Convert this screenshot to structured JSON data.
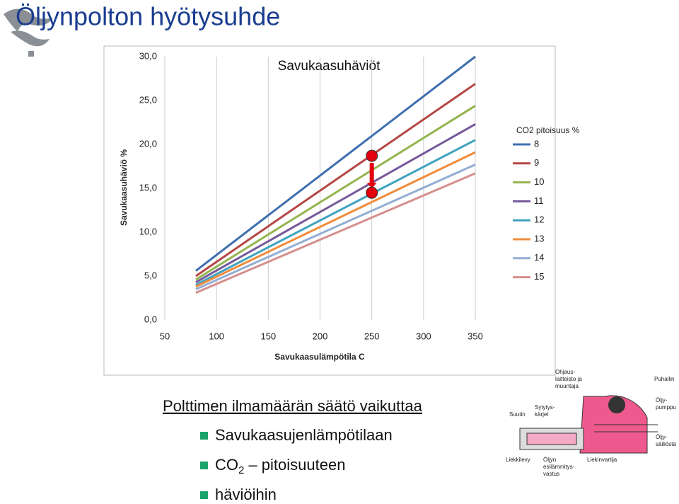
{
  "slide_title": "Öljynpolton hyötysuhde",
  "chart_data": {
    "type": "line",
    "title": "Savukaasuhäviöt",
    "x_label": "Savukaasulämpötila  C",
    "y_label": "Savukaasuhäviö  %",
    "legend_title": "CO2 pitoisuus %",
    "legend": "right",
    "x": [
      80,
      350
    ],
    "series": [
      {
        "name": "8",
        "color": "#3f6fb0",
        "values": [
          5.6,
          30.0
        ]
      },
      {
        "name": "9",
        "color": "#b54744",
        "values": [
          5.0,
          26.9
        ]
      },
      {
        "name": "10",
        "color": "#94b54f",
        "values": [
          4.6,
          24.4
        ]
      },
      {
        "name": "11",
        "color": "#75599a",
        "values": [
          4.3,
          22.3
        ]
      },
      {
        "name": "12",
        "color": "#3fa3bf",
        "values": [
          4.0,
          20.5
        ]
      },
      {
        "name": "13",
        "color": "#f08c3c",
        "values": [
          3.8,
          19.1
        ]
      },
      {
        "name": "14",
        "color": "#93add3",
        "values": [
          3.5,
          17.7
        ]
      },
      {
        "name": "15",
        "color": "#d68f8d",
        "values": [
          3.1,
          16.7
        ]
      }
    ],
    "highlight": {
      "x": 250,
      "values": [
        18.7,
        14.5
      ],
      "color": "#e3000f"
    },
    "xlim": [
      50,
      350
    ],
    "xticks": [
      50,
      100,
      150,
      200,
      250,
      300,
      350
    ],
    "ylim": [
      0,
      30
    ],
    "yticks": [
      {
        "value": 0,
        "label": "0,0"
      },
      {
        "value": 5,
        "label": "5,0"
      },
      {
        "value": 10,
        "label": "10,0"
      },
      {
        "value": 15,
        "label": "15,0"
      },
      {
        "value": 20,
        "label": "20,0"
      },
      {
        "value": 25,
        "label": "25,0"
      },
      {
        "value": 30,
        "label": "30,0"
      }
    ],
    "grid": true
  },
  "text": {
    "heading": "Polttimen ilmamäärän säätö vaikuttaa",
    "bullets": [
      {
        "text": "Savukaasujenlämpötilaan"
      },
      {
        "text": "CO",
        "sub": "2",
        "rest": " – pitoisuuteen"
      },
      {
        "text": "häviöihin"
      }
    ]
  },
  "diagram": {
    "labels": [
      "Ohjaus-",
      "laitteisto ja",
      "muuntaja",
      "Puhallin",
      "Sytytys-",
      "kärjet",
      "Suutin",
      "Öljy-",
      "pumppu",
      "Öljy-",
      "säiliöstä",
      "Liekkilevy",
      "Öljyn",
      "esilämmitys-",
      "vastus",
      "Liekinvartija"
    ]
  }
}
